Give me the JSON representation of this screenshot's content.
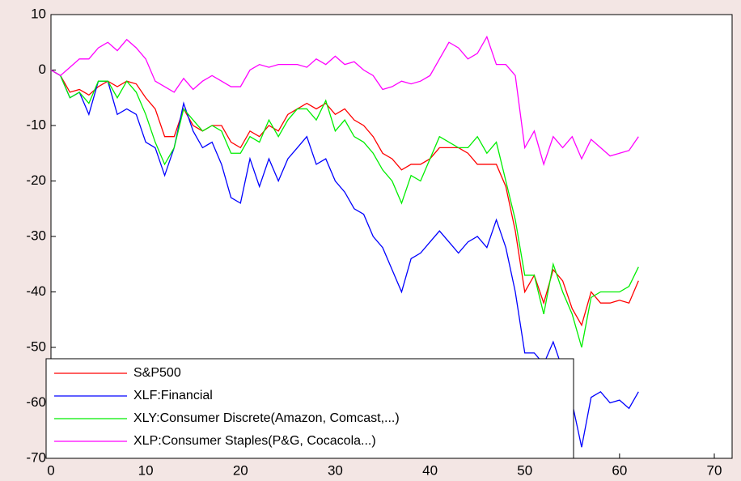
{
  "chart_data": {
    "type": "line",
    "x": [
      0,
      1,
      2,
      3,
      4,
      5,
      6,
      7,
      8,
      9,
      10,
      11,
      12,
      13,
      14,
      15,
      16,
      17,
      18,
      19,
      20,
      21,
      22,
      23,
      24,
      25,
      26,
      27,
      28,
      29,
      30,
      31,
      32,
      33,
      34,
      35,
      36,
      37,
      38,
      39,
      40,
      41,
      42,
      43,
      44,
      45,
      46,
      47,
      48,
      49,
      50,
      51,
      52,
      53,
      54,
      55,
      56,
      57,
      58,
      59,
      60,
      61,
      62
    ],
    "series": [
      {
        "name": "S&P500",
        "color": "#ff0000",
        "values": [
          0,
          -1,
          -4,
          -3.5,
          -4.5,
          -3,
          -2,
          -3,
          -2,
          -2.5,
          -5,
          -7,
          -12,
          -12,
          -7,
          -10,
          -11,
          -10,
          -10,
          -13,
          -14,
          -11,
          -12,
          -10,
          -11,
          -8,
          -7,
          -6,
          -7,
          -6,
          -8,
          -7,
          -9,
          -10,
          -12,
          -15,
          -16,
          -18,
          -17,
          -17,
          -16,
          -14,
          -14,
          -14,
          -15,
          -17,
          -17,
          -17,
          -21,
          -29,
          -40,
          -37,
          -42,
          -36,
          -38,
          -43,
          -46,
          -40,
          -42,
          -42,
          -41.5,
          -42,
          -38
        ]
      },
      {
        "name": "XLF:Financial",
        "color": "#0000ff",
        "values": [
          0,
          -1,
          -5,
          -4,
          -8,
          -2,
          -2,
          -8,
          -7,
          -8,
          -13,
          -14,
          -19,
          -14,
          -6,
          -11,
          -14,
          -13,
          -17,
          -23,
          -24,
          -16,
          -21,
          -16,
          -20,
          -16,
          -14,
          -12,
          -17,
          -16,
          -20,
          -22,
          -25,
          -26,
          -30,
          -32,
          -36,
          -40,
          -34,
          -33,
          -31,
          -29,
          -31,
          -33,
          -31,
          -30,
          -32,
          -27,
          -32,
          -40,
          -51,
          -51,
          -53,
          -49,
          -54,
          -60,
          -68,
          -59,
          -58,
          -60,
          -59.5,
          -61,
          -58
        ]
      },
      {
        "name": "XLY:Consumer Discrete(Amazon, Comcast,...)",
        "color": "#00ee00",
        "values": [
          0,
          -1,
          -5,
          -4,
          -6,
          -2,
          -2,
          -5,
          -2,
          -4,
          -8,
          -13,
          -17,
          -14,
          -7,
          -9,
          -11,
          -10,
          -11,
          -15,
          -15,
          -12,
          -13,
          -9,
          -12,
          -9,
          -7,
          -7,
          -9,
          -5.5,
          -11,
          -9,
          -12,
          -13,
          -15,
          -18,
          -20,
          -24,
          -19,
          -20,
          -16,
          -12,
          -13,
          -14,
          -14,
          -12,
          -15,
          -13,
          -20,
          -27,
          -37,
          -37,
          -44,
          -35,
          -40,
          -44,
          -50,
          -41,
          -40,
          -40,
          -40,
          -39,
          -35.5
        ]
      },
      {
        "name": "XLP:Consumer Staples(P&G, Cocacola...)",
        "color": "#ff00ff",
        "values": [
          0,
          -1,
          0.5,
          2,
          2,
          4,
          5,
          3.5,
          5.5,
          4,
          2,
          -2,
          -3,
          -4,
          -1.5,
          -3.5,
          -2,
          -1,
          -2,
          -3,
          -3,
          0,
          1,
          0.5,
          1,
          1,
          1,
          0.5,
          2,
          1,
          2.5,
          1,
          1.5,
          0,
          -1,
          -3.5,
          -3,
          -2,
          -2.5,
          -2,
          -1,
          2,
          5,
          4,
          2,
          3,
          6,
          1,
          1,
          -1,
          -14,
          -11,
          -17,
          -12,
          -14,
          -12,
          -16,
          -12.5,
          -14,
          -15.5,
          -15,
          -14.5,
          -12
        ]
      }
    ],
    "xlim": [
      0,
      70
    ],
    "ylim": [
      -70,
      10
    ],
    "xticks": [
      0,
      10,
      20,
      30,
      40,
      50,
      60,
      70
    ],
    "yticks": [
      -70,
      -60,
      -50,
      -40,
      -30,
      -20,
      -10,
      0,
      10
    ],
    "grid": false,
    "legend": "lower left"
  }
}
